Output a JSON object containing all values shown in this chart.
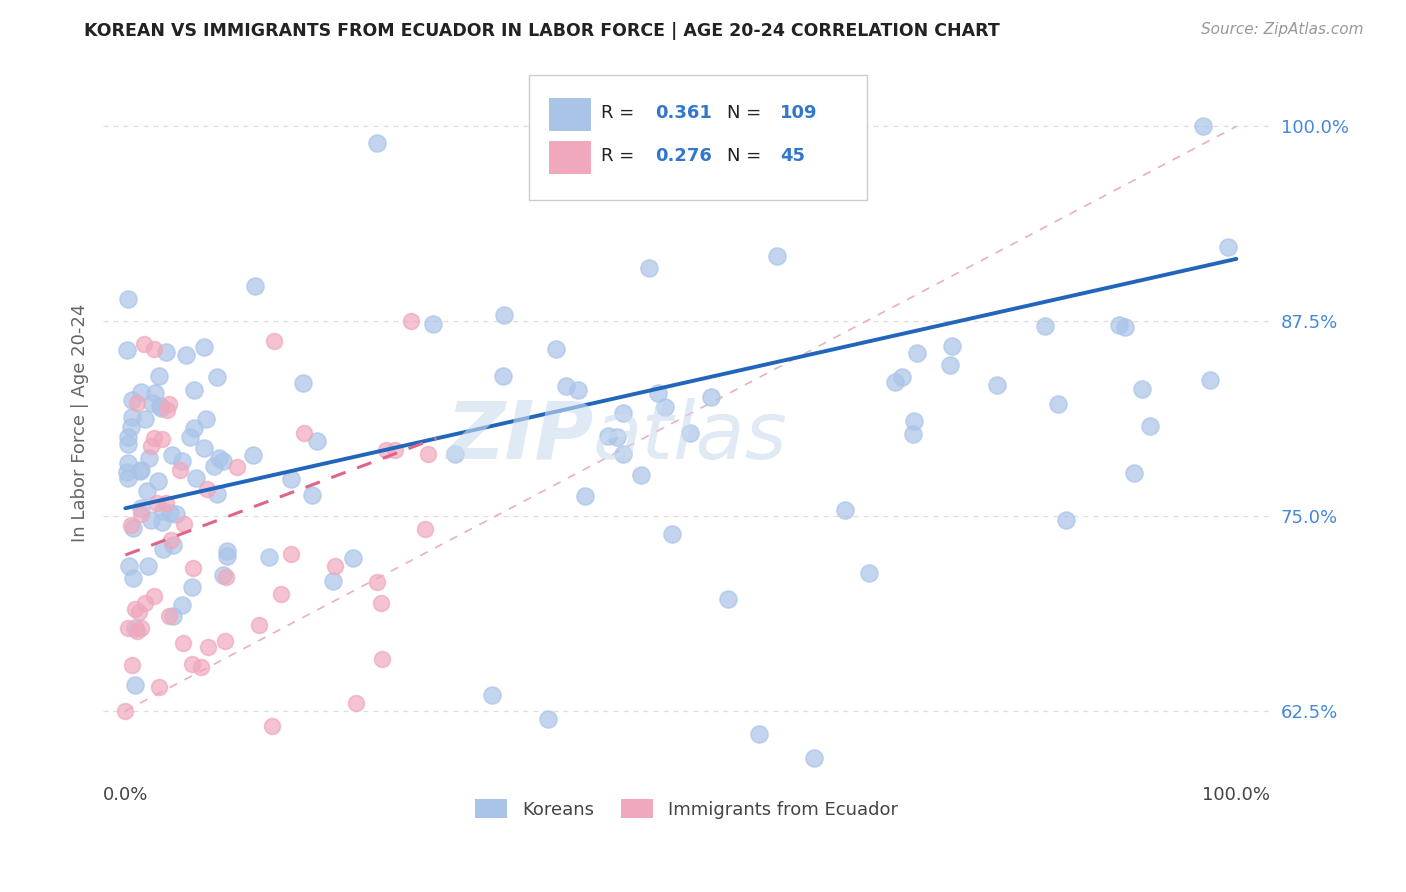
{
  "title": "KOREAN VS IMMIGRANTS FROM ECUADOR IN LABOR FORCE | AGE 20-24 CORRELATION CHART",
  "source": "Source: ZipAtlas.com",
  "ylabel": "In Labor Force | Age 20-24",
  "ytick_labels": [
    "62.5%",
    "75.0%",
    "87.5%",
    "100.0%"
  ],
  "ytick_values": [
    0.625,
    0.75,
    0.875,
    1.0
  ],
  "xlim": [
    0.0,
    1.0
  ],
  "ylim": [
    0.58,
    1.04
  ],
  "korean_color": "#aac4e8",
  "ecuador_color": "#f0a8bc",
  "korean_R": 0.361,
  "korean_N": 109,
  "ecuador_R": 0.276,
  "ecuador_N": 45,
  "korean_line_color": "#2266bb",
  "ecuador_line_color": "#dd6688",
  "ecuador_line_style": "dashed",
  "ref_line_color": "#cccccc",
  "watermark": "ZIPatlas",
  "legend_labels": [
    "Koreans",
    "Immigrants from Ecuador"
  ],
  "korean_trend_x0": 0.0,
  "korean_trend_y0": 0.755,
  "korean_trend_x1": 1.0,
  "korean_trend_y1": 0.915,
  "ecuador_trend_x0": 0.0,
  "ecuador_trend_y0": 0.725,
  "ecuador_trend_x1": 0.28,
  "ecuador_trend_y1": 0.8
}
